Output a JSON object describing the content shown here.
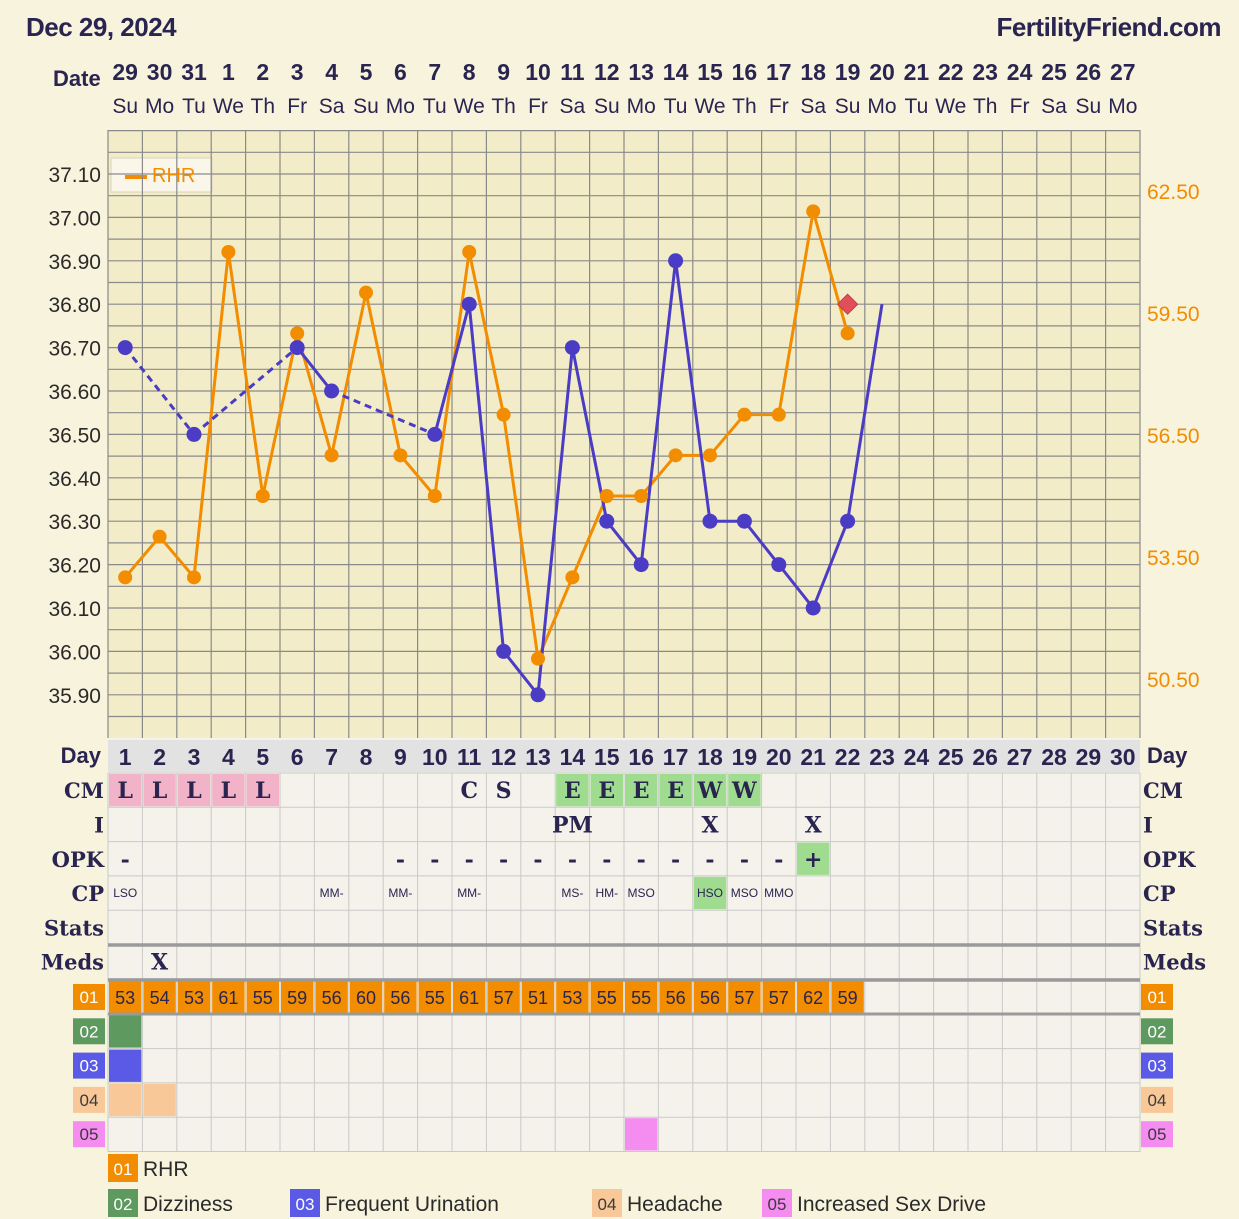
{
  "header": {
    "date": "Dec 29, 2024",
    "site": "FertilityFriend.com"
  },
  "colors": {
    "temp_line": "#4a3cc4",
    "rhr_line": "#f28c00",
    "grid": "#8a8a8a",
    "plot_bg": "#f3ecc8",
    "table_bg": "#f4f2ea",
    "cm_l": "#f2b3c8",
    "cm_ew": "#9fdc8f",
    "sym_02": "#5e9a60",
    "sym_03": "#5a5ae6",
    "sym_04": "#f8c898",
    "sym_05": "#f58cf0",
    "rhr_cell": "#f28c00",
    "marker_red": "#e0505a",
    "label_text": "#2a2450"
  },
  "dates_row": {
    "label": "Date",
    "dates": [
      "29",
      "30",
      "31",
      "1",
      "2",
      "3",
      "4",
      "5",
      "6",
      "7",
      "8",
      "9",
      "10",
      "11",
      "12",
      "13",
      "14",
      "15",
      "16",
      "17",
      "18",
      "19",
      "20",
      "21",
      "22",
      "23",
      "24",
      "25",
      "26",
      "27"
    ],
    "weekdays": [
      "Su",
      "Mo",
      "Tu",
      "We",
      "Th",
      "Fr",
      "Sa",
      "Su",
      "Mo",
      "Tu",
      "We",
      "Th",
      "Fr",
      "Sa",
      "Su",
      "Mo",
      "Tu",
      "We",
      "Th",
      "Fr",
      "Sa",
      "Su",
      "Mo",
      "Tu",
      "We",
      "Th",
      "Fr",
      "Sa",
      "Su",
      "Mo"
    ]
  },
  "chart_data": {
    "type": "line",
    "legend": {
      "label": "RHR",
      "placement": "top-left"
    },
    "grid": true,
    "y_left": {
      "range": [
        35.83,
        37.2
      ],
      "ticks": [
        "37.10",
        "37.00",
        "36.90",
        "36.80",
        "36.70",
        "36.60",
        "36.50",
        "36.40",
        "36.30",
        "36.20",
        "36.10",
        "36.00",
        "35.90"
      ]
    },
    "y_right": {
      "range": [
        49.0,
        64.0
      ],
      "ticks": [
        "62.50",
        "59.50",
        "56.50",
        "53.50",
        "50.50"
      ]
    },
    "x": [
      1,
      2,
      3,
      4,
      5,
      6,
      7,
      8,
      9,
      10,
      11,
      12,
      13,
      14,
      15,
      16,
      17,
      18,
      19,
      20,
      21,
      22,
      23,
      24,
      25,
      26,
      27,
      28,
      29,
      30
    ],
    "series": [
      {
        "key": "temperature",
        "points": [
          [
            1,
            36.7
          ],
          [
            3,
            36.5
          ],
          [
            6,
            36.7
          ],
          [
            7,
            36.6
          ],
          [
            10,
            36.5
          ],
          [
            11,
            36.8
          ],
          [
            12,
            36.0
          ],
          [
            13,
            35.9
          ],
          [
            14,
            36.7
          ],
          [
            15,
            36.3
          ],
          [
            16,
            36.2
          ],
          [
            17,
            36.9
          ],
          [
            18,
            36.3
          ],
          [
            19,
            36.3
          ],
          [
            20,
            36.2
          ],
          [
            21,
            36.1
          ],
          [
            22,
            36.3
          ],
          [
            23,
            36.8
          ]
        ],
        "dashed_segments": [
          [
            1,
            3
          ],
          [
            3,
            6
          ],
          [
            7,
            10
          ]
        ]
      },
      {
        "name": "RHR",
        "points": [
          [
            1,
            53
          ],
          [
            2,
            54
          ],
          [
            3,
            53
          ],
          [
            4,
            61
          ],
          [
            5,
            55
          ],
          [
            6,
            59
          ],
          [
            7,
            56
          ],
          [
            8,
            60
          ],
          [
            9,
            56
          ],
          [
            10,
            55
          ],
          [
            11,
            61
          ],
          [
            12,
            57
          ],
          [
            13,
            51
          ],
          [
            14,
            53
          ],
          [
            15,
            55
          ],
          [
            16,
            55
          ],
          [
            17,
            56
          ],
          [
            18,
            56
          ],
          [
            19,
            57
          ],
          [
            20,
            57
          ],
          [
            21,
            62
          ],
          [
            22,
            59
          ]
        ]
      }
    ],
    "marker_day": 22
  },
  "table": {
    "day_label": "Day",
    "days": [
      "1",
      "2",
      "3",
      "4",
      "5",
      "6",
      "7",
      "8",
      "9",
      "10",
      "11",
      "12",
      "13",
      "14",
      "15",
      "16",
      "17",
      "18",
      "19",
      "20",
      "21",
      "22",
      "23",
      "24",
      "25",
      "26",
      "27",
      "28",
      "29",
      "30"
    ],
    "rows": [
      {
        "label": "CM",
        "size": "big",
        "cells": [
          "L",
          "L",
          "L",
          "L",
          "L",
          "",
          "",
          "",
          "",
          "",
          "C",
          "S",
          "",
          "E",
          "E",
          "E",
          "E",
          "W",
          "W",
          "",
          "",
          "",
          "",
          "",
          "",
          "",
          "",
          "",
          "",
          ""
        ]
      },
      {
        "label": "I",
        "size": "big",
        "cells": [
          "",
          "",
          "",
          "",
          "",
          "",
          "",
          "",
          "",
          "",
          "",
          "",
          "",
          "PM",
          "",
          "",
          "",
          "X",
          "",
          "",
          "X",
          "",
          "",
          "",
          "",
          "",
          "",
          "",
          "",
          ""
        ]
      },
      {
        "label": "OPK",
        "size": "big",
        "cells": [
          "-",
          "",
          "",
          "",
          "",
          "",
          "",
          "",
          "-",
          "-",
          "-",
          "-",
          "-",
          "-",
          "-",
          "-",
          "-",
          "-",
          "-",
          "-",
          "+",
          "",
          "",
          "",
          "",
          "",
          "",
          "",
          "",
          ""
        ]
      },
      {
        "label": "CP",
        "size": "small",
        "cells": [
          "LSO",
          "",
          "",
          "",
          "",
          "",
          "MM-",
          "",
          "MM-",
          "",
          "MM-",
          "",
          "",
          "MS-",
          "HM-",
          "MSO",
          "",
          "HSO",
          "MSO",
          "MMO",
          "",
          "",
          "",
          "",
          "",
          "",
          "",
          "",
          "",
          ""
        ]
      },
      {
        "label": "Stats",
        "size": "big",
        "cells": [
          "",
          "",
          "",
          "",
          "",
          "",
          "",
          "",
          "",
          "",
          "",
          "",
          "",
          "",
          "",
          "",
          "",
          "",
          "",
          "",
          "",
          "",
          "",
          "",
          "",
          "",
          "",
          "",
          "",
          ""
        ]
      },
      {
        "label": "Meds",
        "size": "big",
        "cells": [
          "",
          "X",
          "",
          "",
          "",
          "",
          "",
          "",
          "",
          "",
          "",
          "",
          "",
          "",
          "",
          "",
          "",
          "",
          "",
          "",
          "",
          "",
          "",
          "",
          "",
          "",
          "",
          "",
          "",
          ""
        ]
      }
    ],
    "symptom_rows": [
      {
        "code": "01",
        "values": [
          "53",
          "54",
          "53",
          "61",
          "55",
          "59",
          "56",
          "60",
          "56",
          "55",
          "61",
          "57",
          "51",
          "53",
          "55",
          "55",
          "56",
          "56",
          "57",
          "57",
          "62",
          "59",
          "",
          "",
          "",
          "",
          "",
          "",
          "",
          ""
        ]
      },
      {
        "code": "02",
        "days": [
          1
        ]
      },
      {
        "code": "03",
        "days": [
          1
        ]
      },
      {
        "code": "04",
        "days": [
          1,
          2
        ]
      },
      {
        "code": "05",
        "days": [
          16
        ]
      }
    ]
  },
  "legend": [
    {
      "code": "01",
      "label": "RHR"
    },
    {
      "code": "02",
      "label": "Dizziness"
    },
    {
      "code": "03",
      "label": "Frequent Urination"
    },
    {
      "code": "04",
      "label": "Headache"
    },
    {
      "code": "05",
      "label": "Increased Sex Drive"
    }
  ]
}
